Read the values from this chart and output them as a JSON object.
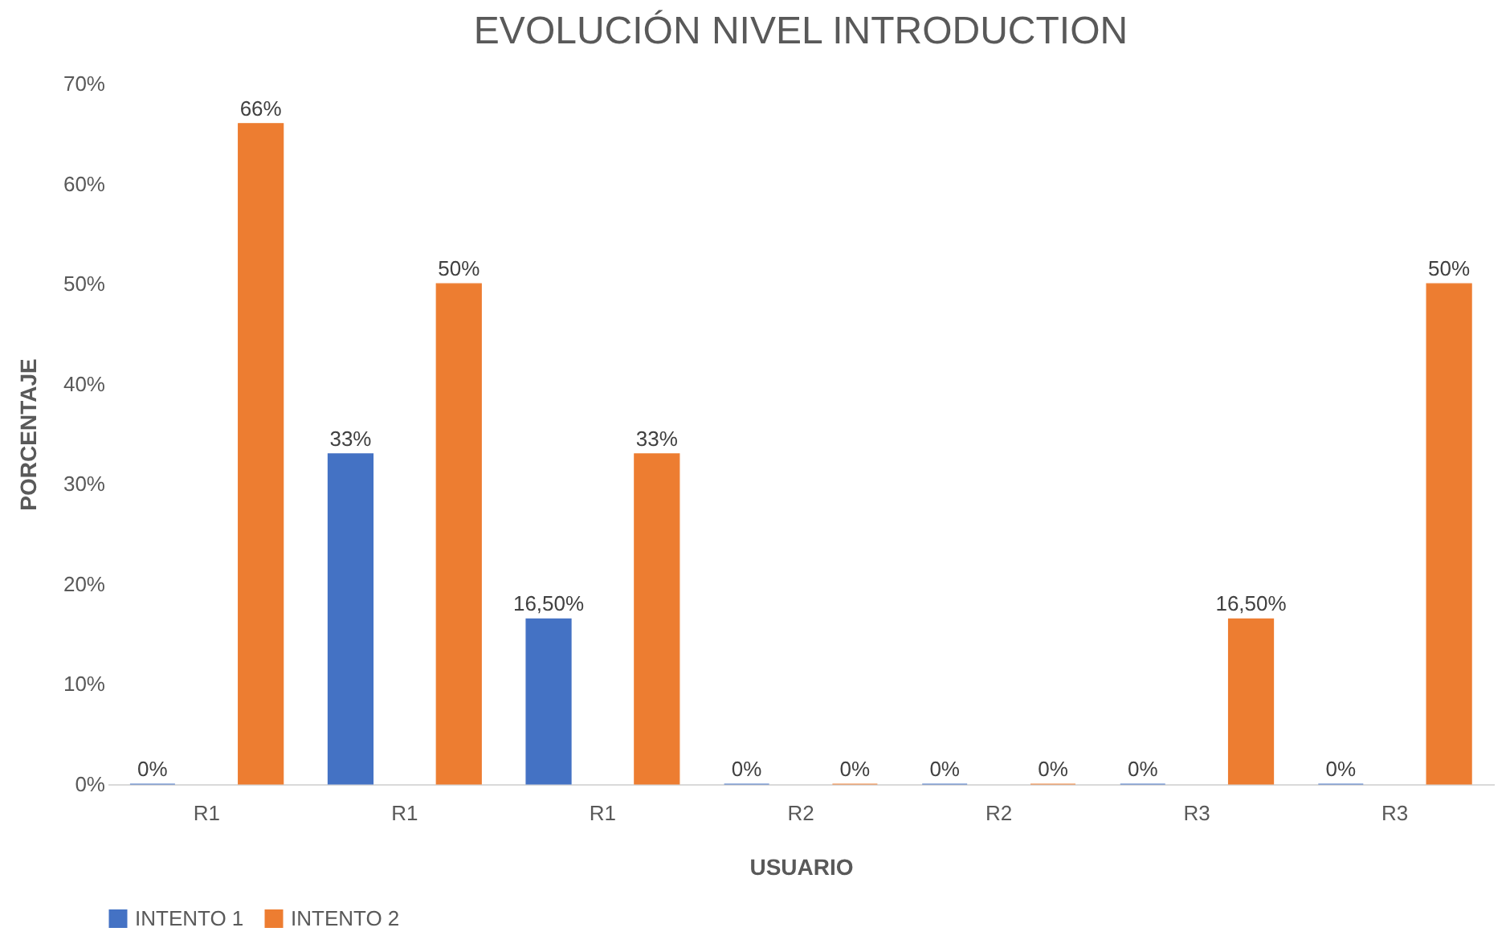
{
  "chart_data": {
    "type": "bar",
    "title": "EVOLUCIÓN NIVEL INTRODUCTION",
    "xlabel": "USUARIO",
    "ylabel": "PORCENTAJE",
    "categories": [
      "R1",
      "R1",
      "R1",
      "R2",
      "R2",
      "R3",
      "R3"
    ],
    "series": [
      {
        "name": "INTENTO 1",
        "color": "#4472c4",
        "values": [
          0,
          33,
          16.5,
          0,
          0,
          0,
          0
        ],
        "value_labels": [
          "0%",
          "33%",
          "16,50%",
          "0%",
          "0%",
          "0%",
          "0%"
        ]
      },
      {
        "name": "INTENTO 2",
        "color": "#ed7d31",
        "values": [
          66,
          50,
          33,
          0,
          0,
          16.5,
          50
        ],
        "value_labels": [
          "66%",
          "50%",
          "33%",
          "0%",
          "0%",
          "16,50%",
          "50%"
        ]
      }
    ],
    "ylim": [
      0,
      70
    ],
    "yticks": [
      {
        "value": 0,
        "label": "0%"
      },
      {
        "value": 10,
        "label": "10%"
      },
      {
        "value": 20,
        "label": "20%"
      },
      {
        "value": 30,
        "label": "30%"
      },
      {
        "value": 40,
        "label": "40%"
      },
      {
        "value": 50,
        "label": "50%"
      },
      {
        "value": 60,
        "label": "60%"
      },
      {
        "value": 70,
        "label": "70%"
      }
    ],
    "grid": false,
    "legend": "bottom"
  }
}
